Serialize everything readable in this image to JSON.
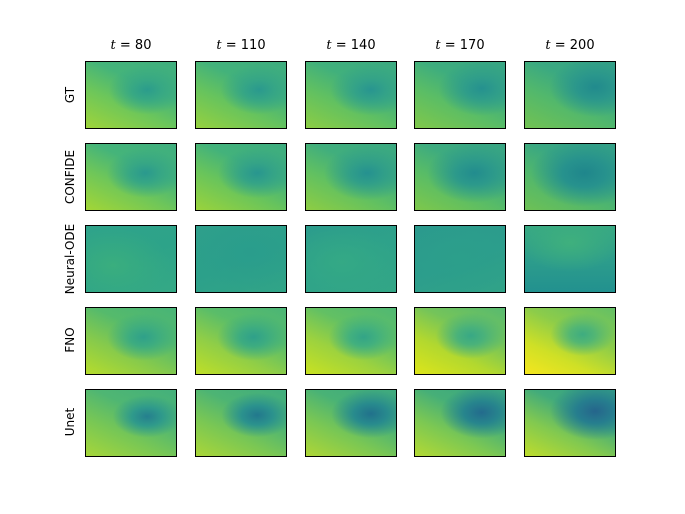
{
  "columns": [
    {
      "var": "t",
      "eq": " = ",
      "value": "80"
    },
    {
      "var": "t",
      "eq": " = ",
      "value": "110"
    },
    {
      "var": "t",
      "eq": " = ",
      "value": "140"
    },
    {
      "var": "t",
      "eq": " = ",
      "value": "170"
    },
    {
      "var": "t",
      "eq": " = ",
      "value": "200"
    }
  ],
  "rows": [
    {
      "label": "GT"
    },
    {
      "label": "CONFIDE"
    },
    {
      "label": "Neural-ODE"
    },
    {
      "label": "FNO"
    },
    {
      "label": "Unet"
    }
  ]
}
